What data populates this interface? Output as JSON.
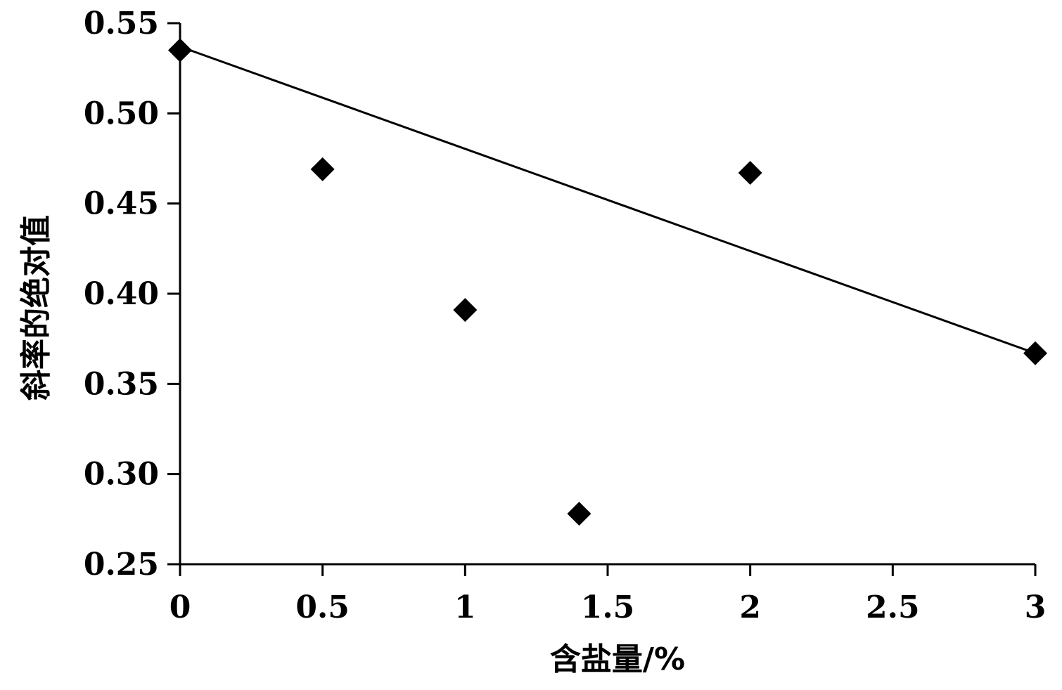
{
  "chart_data": {
    "type": "scatter",
    "xlabel": "含盐量/%",
    "ylabel": "斜率的绝对值",
    "xlim": [
      0,
      3
    ],
    "ylim": [
      0.25,
      0.55
    ],
    "x_ticks": [
      "0",
      "0.5",
      "1",
      "1.5",
      "2",
      "2.5",
      "3"
    ],
    "y_ticks": [
      "0.25",
      "0.30",
      "0.35",
      "0.40",
      "0.45",
      "0.50",
      "0.55"
    ],
    "series": [
      {
        "marker": "diamond",
        "color": "#000000",
        "points": [
          {
            "x": 0,
            "y": 0.535
          },
          {
            "x": 0.5,
            "y": 0.469
          },
          {
            "x": 1.0,
            "y": 0.391
          },
          {
            "x": 1.4,
            "y": 0.278
          },
          {
            "x": 2.0,
            "y": 0.467
          },
          {
            "x": 3.0,
            "y": 0.367
          }
        ]
      }
    ],
    "trendline": {
      "type": "linear",
      "color": "#000000",
      "points": [
        {
          "x": 0,
          "y": 0.537
        },
        {
          "x": 3.0,
          "y": 0.367
        }
      ]
    },
    "grid": false,
    "legend": "none"
  }
}
